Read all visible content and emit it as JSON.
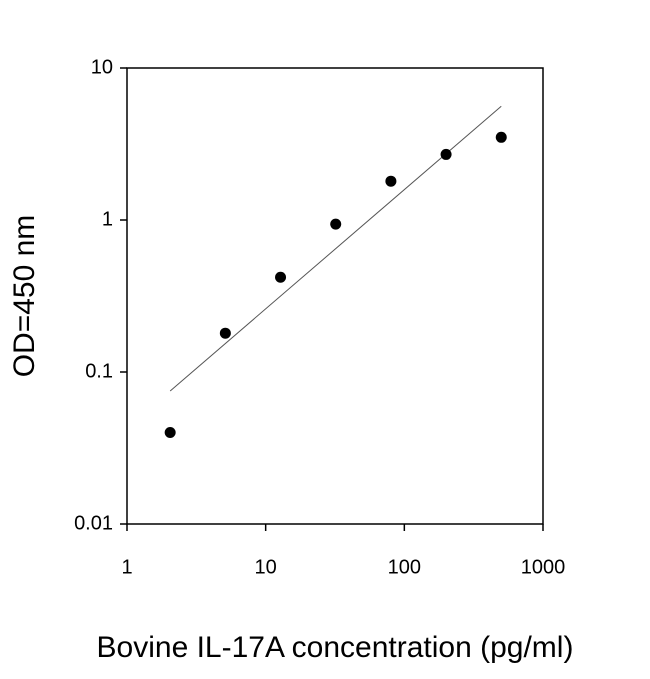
{
  "chart_data": {
    "type": "scatter",
    "xlabel": "Bovine IL-17A concentration (pg/ml)",
    "ylabel": "OD=450 nm",
    "x": [
      2.048,
      5.12,
      12.8,
      32,
      80,
      200,
      500
    ],
    "values": [
      0.04,
      0.18,
      0.42,
      0.94,
      1.8,
      2.7,
      3.5
    ],
    "color": "#000000",
    "trendline": {
      "x": [
        2.048,
        500
      ],
      "y": [
        0.075,
        5.6
      ],
      "color": "#555555"
    },
    "xscale": "log",
    "yscale": "log",
    "xlim": [
      1,
      1000
    ],
    "ylim": [
      0.01,
      10
    ],
    "xticks": [
      1,
      10,
      100,
      1000
    ],
    "yticks": [
      0.01,
      0.1,
      1,
      10
    ],
    "grid": false
  }
}
